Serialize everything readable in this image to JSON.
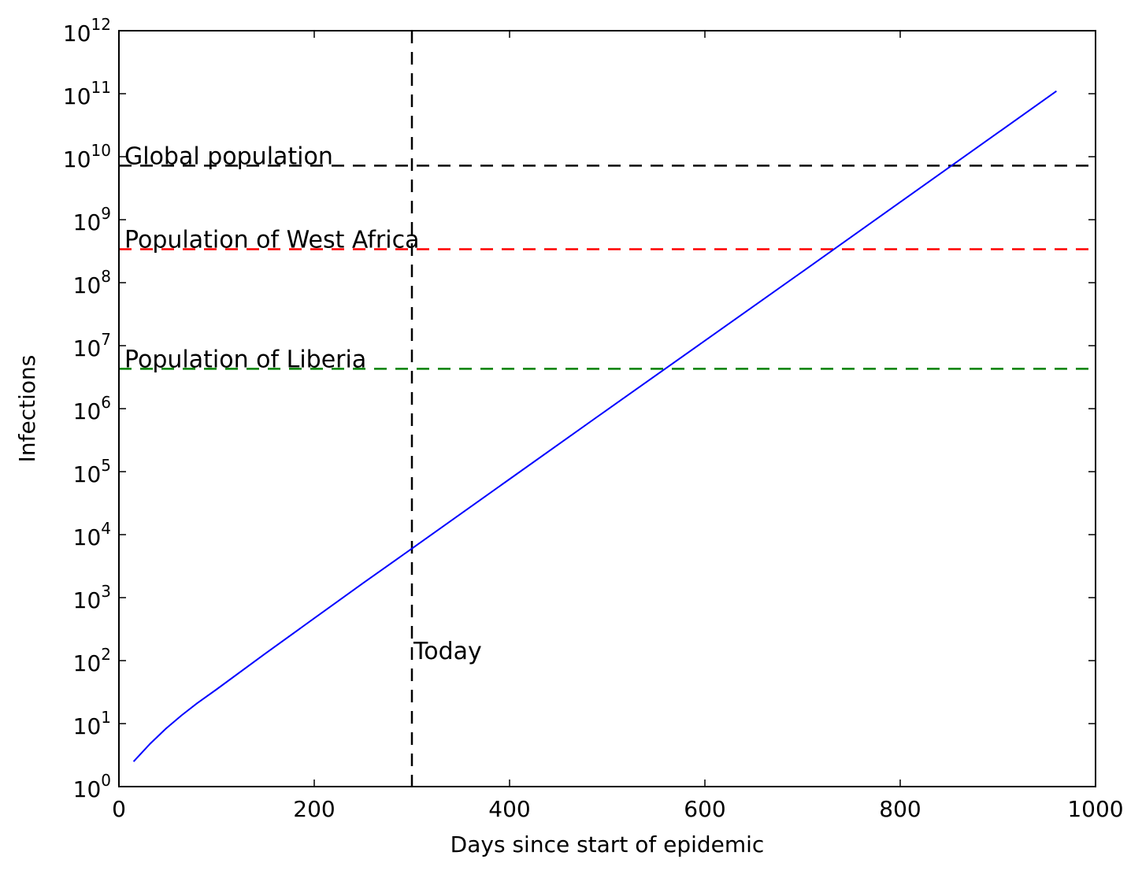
{
  "chart_data": {
    "type": "line",
    "title": "",
    "xlabel": "Days since start of epidemic",
    "ylabel": "Infections",
    "xlim": [
      0,
      1000
    ],
    "ylim": [
      1,
      1000000000000
    ],
    "yscale": "log",
    "grid": false,
    "legend": "none",
    "x_ticks": [
      "0",
      "200",
      "400",
      "600",
      "800",
      "1000"
    ],
    "x_tick_values": [
      0,
      200,
      400,
      600,
      800,
      1000
    ],
    "y_ticks": [
      {
        "base": "10",
        "exp": "0",
        "value": 1
      },
      {
        "base": "10",
        "exp": "1",
        "value": 10
      },
      {
        "base": "10",
        "exp": "2",
        "value": 100
      },
      {
        "base": "10",
        "exp": "3",
        "value": 1000
      },
      {
        "base": "10",
        "exp": "4",
        "value": 10000
      },
      {
        "base": "10",
        "exp": "5",
        "value": 100000
      },
      {
        "base": "10",
        "exp": "6",
        "value": 1000000
      },
      {
        "base": "10",
        "exp": "7",
        "value": 10000000
      },
      {
        "base": "10",
        "exp": "8",
        "value": 100000000
      },
      {
        "base": "10",
        "exp": "9",
        "value": 1000000000
      },
      {
        "base": "10",
        "exp": "10",
        "value": 10000000000
      },
      {
        "base": "10",
        "exp": "11",
        "value": 100000000000
      },
      {
        "base": "10",
        "exp": "12",
        "value": 1000000000000
      }
    ],
    "series": [
      {
        "color": "#0000ff",
        "x": [
          15,
          32,
          48,
          64,
          80,
          100,
          150,
          200,
          250,
          300,
          400,
          500,
          600,
          700,
          800,
          900,
          960
        ],
        "y": [
          2.5,
          4.8,
          8.3,
          13.5,
          21,
          35,
          130,
          470,
          1700,
          6000,
          76000,
          960000,
          12000000,
          150000000,
          1900000000,
          24000000000,
          110000000000
        ]
      }
    ],
    "hlines": [
      {
        "label": "Global population",
        "y": 7200000000,
        "color": "#000000"
      },
      {
        "label": "Population of West Africa",
        "y": 340000000,
        "color": "#ff0000"
      },
      {
        "label": "Population of Liberia",
        "y": 4300000,
        "color": "#008000"
      }
    ],
    "vlines": [
      {
        "label": "Today",
        "x": 300,
        "color": "#000000"
      }
    ]
  }
}
